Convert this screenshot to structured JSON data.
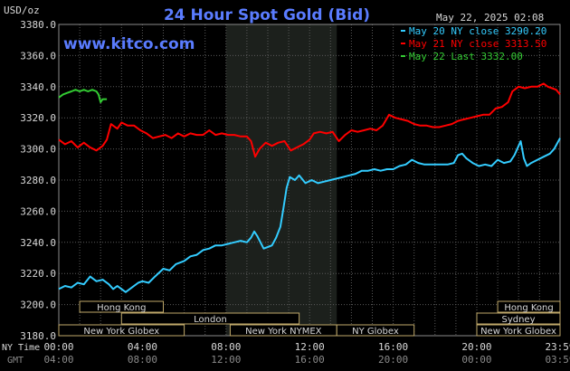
{
  "chart_data": {
    "type": "line",
    "title": "24 Hour Spot Gold (Bid)",
    "website": "www.kitco.com",
    "timestamp": "May 22, 2025 02:08",
    "y_unit_label": "USD/oz",
    "ylim": [
      3180,
      3380
    ],
    "yticks": [
      "3380.0",
      "3360.0",
      "3340.0",
      "3320.0",
      "3300.0",
      "3280.0",
      "3260.0",
      "3240.0",
      "3220.0",
      "3200.0",
      "3180.0"
    ],
    "x_row1_label": "NY Time",
    "x_row2_label": "GMT",
    "x_ticks_ny": [
      "00:00",
      "04:00",
      "08:00",
      "12:00",
      "16:00",
      "20:00",
      "23:59"
    ],
    "x_ticks_gmt": [
      "04:00",
      "08:00",
      "12:00",
      "16:00",
      "20:00",
      "00:00",
      "03:59"
    ],
    "x_hours": [
      0,
      4,
      8,
      12,
      16,
      20,
      23.983
    ],
    "highlight_hours": [
      8.0,
      13.3
    ],
    "legend": [
      {
        "label": "May 20 NY close 3290.20",
        "color": "#33ccff"
      },
      {
        "label": "May 21 NY close 3313.50",
        "color": "#ff0000"
      },
      {
        "label": "May 22 Last 3332.00",
        "color": "#33cc33"
      }
    ],
    "series": [
      {
        "color": "#33ccff",
        "points": [
          [
            0,
            3210
          ],
          [
            0.3,
            3212
          ],
          [
            0.6,
            3211
          ],
          [
            0.9,
            3214
          ],
          [
            1.2,
            3213
          ],
          [
            1.5,
            3218
          ],
          [
            1.8,
            3215
          ],
          [
            2.1,
            3216
          ],
          [
            2.4,
            3213
          ],
          [
            2.6,
            3210
          ],
          [
            2.8,
            3212
          ],
          [
            3.0,
            3210
          ],
          [
            3.2,
            3208
          ],
          [
            3.5,
            3211
          ],
          [
            3.8,
            3214
          ],
          [
            4.0,
            3215
          ],
          [
            4.3,
            3214
          ],
          [
            4.6,
            3218
          ],
          [
            5.0,
            3223
          ],
          [
            5.3,
            3222
          ],
          [
            5.6,
            3226
          ],
          [
            6.0,
            3228
          ],
          [
            6.3,
            3231
          ],
          [
            6.6,
            3232
          ],
          [
            6.9,
            3235
          ],
          [
            7.2,
            3236
          ],
          [
            7.5,
            3238
          ],
          [
            7.8,
            3238
          ],
          [
            8.1,
            3239
          ],
          [
            8.4,
            3240
          ],
          [
            8.7,
            3241
          ],
          [
            9.0,
            3240
          ],
          [
            9.2,
            3243
          ],
          [
            9.35,
            3247
          ],
          [
            9.5,
            3244
          ],
          [
            9.65,
            3240
          ],
          [
            9.8,
            3236
          ],
          [
            10.0,
            3237
          ],
          [
            10.2,
            3238
          ],
          [
            10.4,
            3243
          ],
          [
            10.6,
            3250
          ],
          [
            10.75,
            3262
          ],
          [
            10.9,
            3275
          ],
          [
            11.05,
            3282
          ],
          [
            11.3,
            3280
          ],
          [
            11.5,
            3283
          ],
          [
            11.8,
            3278
          ],
          [
            12.1,
            3280
          ],
          [
            12.4,
            3278
          ],
          [
            12.7,
            3279
          ],
          [
            13.0,
            3280
          ],
          [
            13.3,
            3281
          ],
          [
            13.6,
            3282
          ],
          [
            13.9,
            3283
          ],
          [
            14.2,
            3284
          ],
          [
            14.5,
            3286
          ],
          [
            14.8,
            3286
          ],
          [
            15.1,
            3287
          ],
          [
            15.4,
            3286
          ],
          [
            15.7,
            3287
          ],
          [
            16.0,
            3287
          ],
          [
            16.3,
            3289
          ],
          [
            16.6,
            3290
          ],
          [
            16.9,
            3293
          ],
          [
            17.2,
            3291
          ],
          [
            17.5,
            3290
          ],
          [
            17.8,
            3290
          ],
          [
            18.2,
            3290
          ],
          [
            18.6,
            3290
          ],
          [
            18.9,
            3291
          ],
          [
            19.1,
            3296
          ],
          [
            19.3,
            3297
          ],
          [
            19.5,
            3294
          ],
          [
            19.8,
            3291
          ],
          [
            20.1,
            3289
          ],
          [
            20.4,
            3290
          ],
          [
            20.7,
            3289
          ],
          [
            21.0,
            3293
          ],
          [
            21.3,
            3291
          ],
          [
            21.6,
            3292
          ],
          [
            21.8,
            3296
          ],
          [
            22.0,
            3302
          ],
          [
            22.1,
            3305
          ],
          [
            22.25,
            3294
          ],
          [
            22.4,
            3289
          ],
          [
            22.6,
            3291
          ],
          [
            22.9,
            3293
          ],
          [
            23.2,
            3295
          ],
          [
            23.5,
            3297
          ],
          [
            23.7,
            3300
          ],
          [
            23.983,
            3307
          ]
        ]
      },
      {
        "color": "#ff0000",
        "points": [
          [
            0,
            3306
          ],
          [
            0.3,
            3303
          ],
          [
            0.6,
            3305
          ],
          [
            0.9,
            3301
          ],
          [
            1.2,
            3304
          ],
          [
            1.5,
            3301
          ],
          [
            1.8,
            3299
          ],
          [
            2.1,
            3302
          ],
          [
            2.3,
            3306
          ],
          [
            2.5,
            3316
          ],
          [
            2.8,
            3313
          ],
          [
            3.0,
            3317
          ],
          [
            3.3,
            3315
          ],
          [
            3.6,
            3315
          ],
          [
            3.9,
            3312
          ],
          [
            4.2,
            3310
          ],
          [
            4.5,
            3307
          ],
          [
            4.8,
            3308
          ],
          [
            5.1,
            3309
          ],
          [
            5.4,
            3307
          ],
          [
            5.7,
            3310
          ],
          [
            6.0,
            3308
          ],
          [
            6.3,
            3310
          ],
          [
            6.6,
            3309
          ],
          [
            6.9,
            3309
          ],
          [
            7.2,
            3312
          ],
          [
            7.5,
            3309
          ],
          [
            7.8,
            3310
          ],
          [
            8.1,
            3309
          ],
          [
            8.4,
            3309
          ],
          [
            8.7,
            3308
          ],
          [
            9.0,
            3308
          ],
          [
            9.2,
            3305
          ],
          [
            9.4,
            3295
          ],
          [
            9.6,
            3300
          ],
          [
            9.9,
            3304
          ],
          [
            10.2,
            3302
          ],
          [
            10.5,
            3304
          ],
          [
            10.8,
            3305
          ],
          [
            11.1,
            3299
          ],
          [
            11.4,
            3301
          ],
          [
            11.7,
            3303
          ],
          [
            12.0,
            3306
          ],
          [
            12.2,
            3310
          ],
          [
            12.5,
            3311
          ],
          [
            12.8,
            3310
          ],
          [
            13.1,
            3311
          ],
          [
            13.4,
            3305
          ],
          [
            13.7,
            3309
          ],
          [
            14.0,
            3312
          ],
          [
            14.3,
            3311
          ],
          [
            14.6,
            3312
          ],
          [
            14.9,
            3313
          ],
          [
            15.2,
            3312
          ],
          [
            15.5,
            3315
          ],
          [
            15.8,
            3322
          ],
          [
            16.1,
            3320
          ],
          [
            16.4,
            3319
          ],
          [
            16.7,
            3318
          ],
          [
            17.0,
            3316
          ],
          [
            17.3,
            3315
          ],
          [
            17.6,
            3315
          ],
          [
            17.9,
            3314
          ],
          [
            18.2,
            3314
          ],
          [
            18.5,
            3315
          ],
          [
            18.8,
            3316
          ],
          [
            19.1,
            3318
          ],
          [
            19.4,
            3319
          ],
          [
            19.7,
            3320
          ],
          [
            20.0,
            3321
          ],
          [
            20.3,
            3322
          ],
          [
            20.6,
            3322
          ],
          [
            20.9,
            3326
          ],
          [
            21.2,
            3327
          ],
          [
            21.5,
            3330
          ],
          [
            21.7,
            3337
          ],
          [
            22.0,
            3340
          ],
          [
            22.3,
            3339
          ],
          [
            22.6,
            3340
          ],
          [
            22.9,
            3340
          ],
          [
            23.2,
            3342
          ],
          [
            23.4,
            3340
          ],
          [
            23.6,
            3339
          ],
          [
            23.8,
            3338
          ],
          [
            23.983,
            3335
          ]
        ]
      },
      {
        "color": "#33cc33",
        "points": [
          [
            0,
            3333
          ],
          [
            0.2,
            3335
          ],
          [
            0.4,
            3336
          ],
          [
            0.6,
            3337
          ],
          [
            0.8,
            3338
          ],
          [
            1.0,
            3337
          ],
          [
            1.2,
            3338
          ],
          [
            1.4,
            3337
          ],
          [
            1.6,
            3338
          ],
          [
            1.8,
            3337
          ],
          [
            1.9,
            3335
          ],
          [
            2.0,
            3330
          ],
          [
            2.1,
            3332
          ],
          [
            2.3,
            3332
          ]
        ]
      }
    ],
    "sessions": [
      {
        "label": "Hong Kong",
        "start": 1.0,
        "end": 5.0,
        "row": 0
      },
      {
        "label": "Hong Kong",
        "start": 21.0,
        "end": 25.0,
        "row": 0
      },
      {
        "label": "London",
        "start": 3.0,
        "end": 11.5,
        "row": 1
      },
      {
        "label": "Sydney",
        "start": 20.0,
        "end": 25.0,
        "row": 1
      },
      {
        "label": "New York Globex",
        "start": 0.0,
        "end": 6.0,
        "row": 2
      },
      {
        "label": "New York NYMEX",
        "start": 8.2,
        "end": 13.3,
        "row": 2
      },
      {
        "label": "NY Globex",
        "start": 13.3,
        "end": 17.0,
        "row": 2
      },
      {
        "label": "New York Globex",
        "start": 20.0,
        "end": 25.0,
        "row": 2
      }
    ]
  }
}
